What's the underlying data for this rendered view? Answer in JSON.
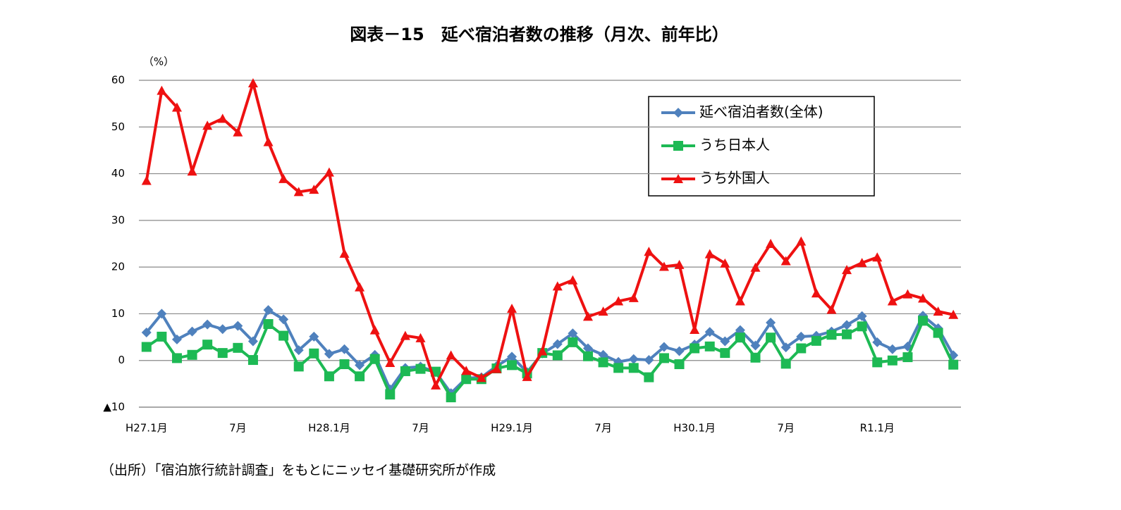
{
  "chart_data": {
    "type": "line",
    "title": "図表－15　延べ宿泊者数の推移（月次、前年比）",
    "ylabel": "（%）",
    "note": "（出所）「宿泊旅行統計調査」をもとにニッセイ基礎研究所が作成",
    "categories": [
      "H27.1月",
      null,
      null,
      null,
      null,
      null,
      "7月",
      null,
      null,
      null,
      null,
      null,
      "H28.1月",
      null,
      null,
      null,
      null,
      null,
      "7月",
      null,
      null,
      null,
      null,
      null,
      "H29.1月",
      null,
      null,
      null,
      null,
      null,
      "7月",
      null,
      null,
      null,
      null,
      null,
      "H30.1月",
      null,
      null,
      null,
      null,
      null,
      "7月",
      null,
      null,
      null,
      null,
      null,
      "R1.1月",
      null,
      null,
      null,
      null,
      null
    ],
    "ylim": [
      -10,
      60
    ],
    "yticks": [
      {
        "value": -10,
        "label": "▲10"
      },
      0,
      10,
      20,
      30,
      40,
      50,
      60
    ],
    "grid": true,
    "legend": "upper right",
    "series": [
      {
        "name": "延べ宿泊者数(全体)",
        "color": "#4f81bd",
        "marker": "diamond",
        "values": [
          6,
          10,
          4.5,
          6.2,
          7.7,
          6.7,
          7.4,
          4.1,
          10.8,
          8.8,
          2.2,
          5.1,
          1.4,
          2.4,
          -1,
          1.2,
          -6.2,
          -1.6,
          -1.3,
          -2.5,
          -7,
          -3.8,
          -3.6,
          -1.2,
          0.8,
          -2.5,
          1.5,
          3.5,
          5.8,
          2.6,
          1.2,
          -0.3,
          0.3,
          0.1,
          2.9,
          2,
          3.4,
          6.1,
          4.1,
          6.5,
          3.2,
          8.1,
          2.8,
          5.1,
          5.3,
          6.2,
          7.6,
          9.5,
          3.9,
          2.4,
          3,
          9.6,
          6.9,
          1.1
        ]
      },
      {
        "name": "うち日本人",
        "color": "#1db954",
        "marker": "square",
        "values": [
          2.9,
          5.1,
          0.5,
          1.2,
          3.4,
          1.6,
          2.7,
          0.1,
          7.8,
          5.3,
          -1.3,
          1.5,
          -3.4,
          -0.8,
          -3.4,
          0.3,
          -7.3,
          -2.3,
          -1.8,
          -2.4,
          -7.9,
          -4,
          -4,
          -1.7,
          -1,
          -2.8,
          1.6,
          1.1,
          3.9,
          0.9,
          -0.4,
          -1.6,
          -1.6,
          -3.6,
          0.5,
          -0.8,
          2.6,
          3,
          1.6,
          4.9,
          0.6,
          4.9,
          -0.7,
          2.6,
          4.2,
          5.5,
          5.6,
          7.3,
          -0.4,
          0,
          0.7,
          8.5,
          5.9,
          -0.9
        ]
      },
      {
        "name": "うち外国人",
        "color": "#ee1111",
        "marker": "triangle",
        "values": [
          38.5,
          57.8,
          54.2,
          40.5,
          50.3,
          51.8,
          48.9,
          59.4,
          46.8,
          38.9,
          36.1,
          36.6,
          40.3,
          22.9,
          15.7,
          6.5,
          -0.5,
          5.3,
          4.8,
          -5.3,
          1.1,
          -2.2,
          -3.7,
          -1.8,
          11.1,
          -3.5,
          2,
          15.9,
          17.2,
          9.4,
          10.5,
          12.7,
          13.4,
          23.3,
          20.1,
          20.5,
          6.6,
          22.8,
          20.8,
          12.7,
          19.9,
          25,
          21.3,
          25.5,
          14.4,
          10.9,
          19.4,
          20.9,
          22.1,
          12.7,
          14.2,
          13.3,
          10.5,
          9.8
        ]
      }
    ]
  }
}
